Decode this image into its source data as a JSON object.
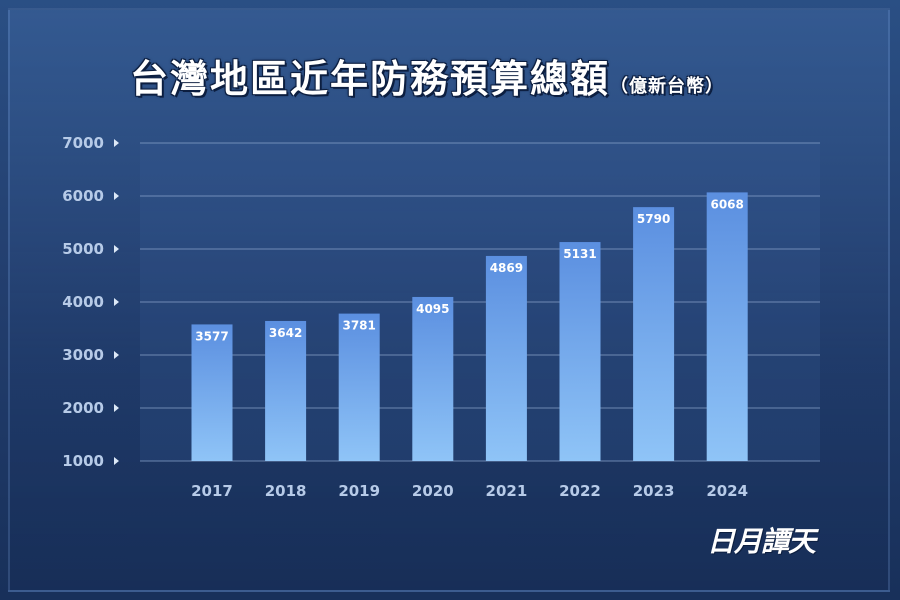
{
  "chart_data": {
    "type": "bar",
    "title": "台灣地區近年防務預算總額",
    "subtitle": "（億新台幣）",
    "categories": [
      "2017",
      "2018",
      "2019",
      "2020",
      "2021",
      "2022",
      "2023",
      "2024"
    ],
    "values": [
      3577,
      3642,
      3781,
      4095,
      4869,
      5131,
      5790,
      6068
    ],
    "ylim": [
      1000,
      7000
    ],
    "yticks": [
      "1000",
      "2000",
      "3000",
      "4000",
      "5000",
      "6000",
      "7000"
    ],
    "grid": true,
    "data_labels": true,
    "colors": {
      "bar_top": "#5b8fe0",
      "bar_bottom": "#8fc4f7",
      "grid": "#8ea8cf",
      "background": "#233f6f"
    }
  },
  "watermark": "日月譚天"
}
